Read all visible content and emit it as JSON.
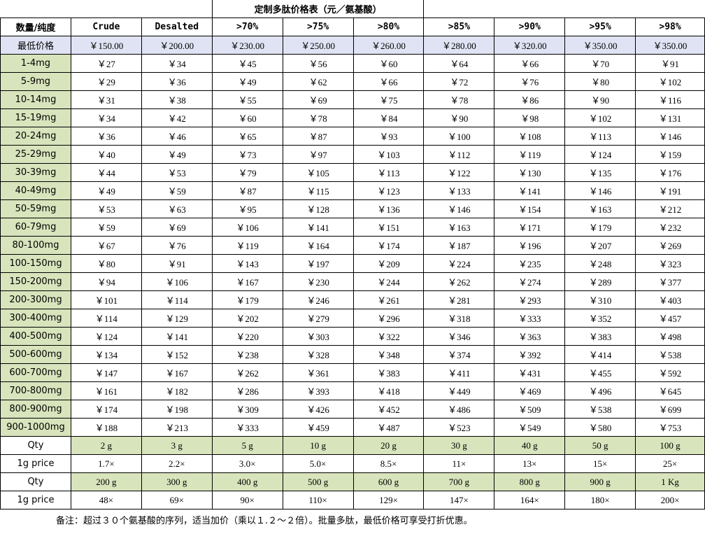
{
  "title": "定制多肽价格表（元／氨基酸）",
  "header": {
    "corner": "数量/纯度",
    "columns": [
      "Crude",
      "Desalted",
      ">70%",
      ">75%",
      ">80%",
      ">85%",
      ">90%",
      ">95%",
      ">98%"
    ]
  },
  "min_price": {
    "label": "最低价格",
    "values": [
      "￥150.00",
      "￥200.00",
      "￥230.00",
      "￥250.00",
      "￥260.00",
      "￥280.00",
      "￥320.00",
      "￥350.00",
      "￥350.00"
    ]
  },
  "rows": [
    {
      "label": "1-4mg",
      "values": [
        "￥27",
        "￥34",
        "￥45",
        "￥56",
        "￥60",
        "￥64",
        "￥66",
        "￥70",
        "￥91"
      ]
    },
    {
      "label": "5-9mg",
      "values": [
        "￥29",
        "￥36",
        "￥49",
        "￥62",
        "￥66",
        "￥72",
        "￥76",
        "￥80",
        "￥102"
      ]
    },
    {
      "label": "10-14mg",
      "values": [
        "￥31",
        "￥38",
        "￥55",
        "￥69",
        "￥75",
        "￥78",
        "￥86",
        "￥90",
        "￥116"
      ]
    },
    {
      "label": "15-19mg",
      "values": [
        "￥34",
        "￥42",
        "￥60",
        "￥78",
        "￥84",
        "￥90",
        "￥98",
        "￥102",
        "￥131"
      ]
    },
    {
      "label": "20-24mg",
      "values": [
        "￥36",
        "￥46",
        "￥65",
        "￥87",
        "￥93",
        "￥100",
        "￥108",
        "￥113",
        "￥146"
      ]
    },
    {
      "label": "25-29mg",
      "values": [
        "￥40",
        "￥49",
        "￥73",
        "￥97",
        "￥103",
        "￥112",
        "￥119",
        "￥124",
        "￥159"
      ]
    },
    {
      "label": "30-39mg",
      "values": [
        "￥44",
        "￥53",
        "￥79",
        "￥105",
        "￥113",
        "￥122",
        "￥130",
        "￥135",
        "￥176"
      ]
    },
    {
      "label": "40-49mg",
      "values": [
        "￥49",
        "￥59",
        "￥87",
        "￥115",
        "￥123",
        "￥133",
        "￥141",
        "￥146",
        "￥191"
      ]
    },
    {
      "label": "50-59mg",
      "values": [
        "￥53",
        "￥63",
        "￥95",
        "￥128",
        "￥136",
        "￥146",
        "￥154",
        "￥163",
        "￥212"
      ]
    },
    {
      "label": "60-79mg",
      "values": [
        "￥59",
        "￥69",
        "￥106",
        "￥141",
        "￥151",
        "￥163",
        "￥171",
        "￥179",
        "￥232"
      ]
    },
    {
      "label": "80-100mg",
      "values": [
        "￥67",
        "￥76",
        "￥119",
        "￥164",
        "￥174",
        "￥187",
        "￥196",
        "￥207",
        "￥269"
      ]
    },
    {
      "label": "100-150mg",
      "values": [
        "￥80",
        "￥91",
        "￥143",
        "￥197",
        "￥209",
        "￥224",
        "￥235",
        "￥248",
        "￥323"
      ]
    },
    {
      "label": "150-200mg",
      "values": [
        "￥94",
        "￥106",
        "￥167",
        "￥230",
        "￥244",
        "￥262",
        "￥274",
        "￥289",
        "￥377"
      ]
    },
    {
      "label": "200-300mg",
      "values": [
        "￥101",
        "￥114",
        "￥179",
        "￥246",
        "￥261",
        "￥281",
        "￥293",
        "￥310",
        "￥403"
      ]
    },
    {
      "label": "300-400mg",
      "values": [
        "￥114",
        "￥129",
        "￥202",
        "￥279",
        "￥296",
        "￥318",
        "￥333",
        "￥352",
        "￥457"
      ]
    },
    {
      "label": "400-500mg",
      "values": [
        "￥124",
        "￥141",
        "￥220",
        "￥303",
        "￥322",
        "￥346",
        "￥363",
        "￥383",
        "￥498"
      ]
    },
    {
      "label": "500-600mg",
      "values": [
        "￥134",
        "￥152",
        "￥238",
        "￥328",
        "￥348",
        "￥374",
        "￥392",
        "￥414",
        "￥538"
      ]
    },
    {
      "label": "600-700mg",
      "values": [
        "￥147",
        "￥167",
        "￥262",
        "￥361",
        "￥383",
        "￥411",
        "￥431",
        "￥455",
        "￥592"
      ]
    },
    {
      "label": "700-800mg",
      "values": [
        "￥161",
        "￥182",
        "￥286",
        "￥393",
        "￥418",
        "￥449",
        "￥469",
        "￥496",
        "￥645"
      ]
    },
    {
      "label": "800-900mg",
      "values": [
        "￥174",
        "￥198",
        "￥309",
        "￥426",
        "￥452",
        "￥486",
        "￥509",
        "￥538",
        "￥699"
      ]
    },
    {
      "label": "900-1000mg",
      "values": [
        "￥188",
        "￥213",
        "￥333",
        "￥459",
        "￥487",
        "￥523",
        "￥549",
        "￥580",
        "￥753"
      ]
    }
  ],
  "bulk": [
    {
      "qty_label": "Qty",
      "qty": [
        "2 g",
        "3 g",
        "5 g",
        "10 g",
        "20 g",
        "30 g",
        "40 g",
        "50 g",
        "100 g"
      ],
      "price_label": "1g price",
      "price": [
        "1.7×",
        "2.2×",
        "3.0×",
        "5.0×",
        "8.5×",
        "11×",
        "13×",
        "15×",
        "25×"
      ]
    },
    {
      "qty_label": "Qty",
      "qty": [
        "200 g",
        "300 g",
        "400 g",
        "500 g",
        "600 g",
        "700 g",
        "800 g",
        "900 g",
        "1 Kg"
      ],
      "price_label": "1g price",
      "price": [
        "48×",
        "69×",
        "90×",
        "110×",
        "129×",
        "147×",
        "164×",
        "180×",
        "200×"
      ]
    }
  ],
  "note": "备注：超过３０个氨基酸的序列，适当加价（乘以１.２～２倍）。批量多肽，最低价格可享受打折优惠。",
  "colors": {
    "label_green": "#d8e4bc",
    "min_price_blue": "#dfe3f3"
  }
}
